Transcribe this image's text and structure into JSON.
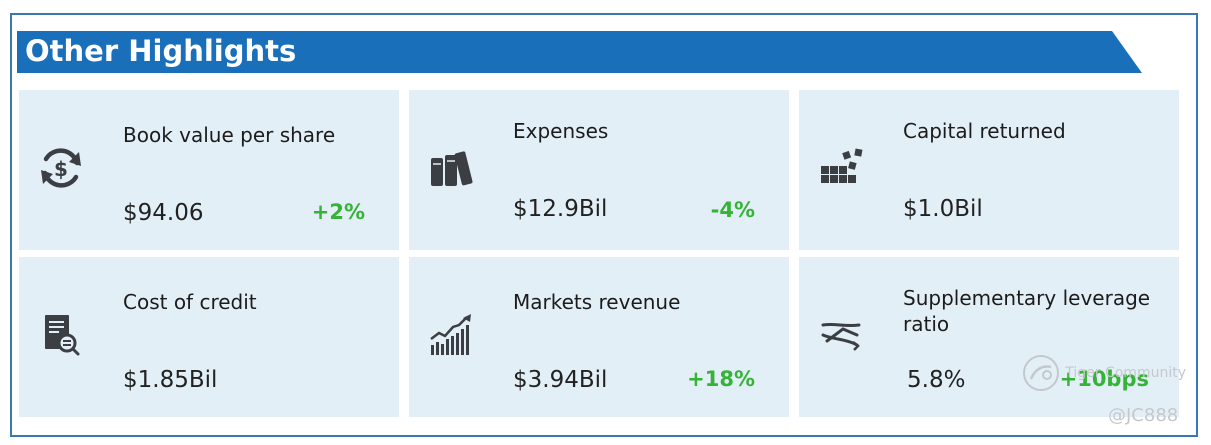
{
  "header": {
    "title": "Other Highlights"
  },
  "cards": [
    {
      "label": "Book value per share",
      "value": "$94.06",
      "change": "+2%",
      "icon": "dollar-cycle-icon"
    },
    {
      "label": "Expenses",
      "value": "$12.9Bil",
      "change": "-4%",
      "icon": "books-icon"
    },
    {
      "label": "Capital returned",
      "value": "$1.0Bil",
      "change": "",
      "icon": "blocks-icon"
    },
    {
      "label": "Cost of credit",
      "value": "$1.85Bil",
      "change": "",
      "icon": "document-search-icon"
    },
    {
      "label": "Markets revenue",
      "value": "$3.94Bil",
      "change": "+18%",
      "icon": "growth-chart-icon"
    },
    {
      "label": "Supplementary leverage ratio",
      "value": "5.8%",
      "change": "+10bps",
      "icon": "leverage-icon"
    }
  ],
  "watermark": {
    "brand": "Tiger Community",
    "handle": "@JC888"
  },
  "colors": {
    "banner": "#1a6fbb",
    "card": "#e3eff7",
    "positive": "#35b336",
    "border": "#3a78b5"
  }
}
